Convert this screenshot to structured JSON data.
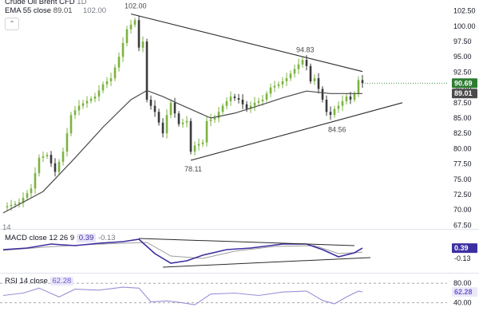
{
  "header": {
    "symbol_text": "Crude Oil Brent CFD",
    "interval": "1D",
    "ema_label": "EMA 55 close",
    "ema_value": "89.01",
    "ema_last_hover": "102.00",
    "macd_label": "MACD close 12 26 9",
    "macd_val1": "0.39",
    "macd_val2": "-0.13",
    "rsi_label": "RSI 14 close",
    "rsi_value": "62.28",
    "date_fragment": "14"
  },
  "colors": {
    "up": "#26a69a",
    "down": "#ef5350",
    "candle_up": "#7cb342",
    "ema": "#4a4a4a",
    "macd": "#3c2fa0",
    "signal": "#9e9e9e",
    "rsi": "#9b8fd6",
    "price_tag": "#2e7d32",
    "ema_tag": "#4a4a4a",
    "macd_tag": "#3c2fa0"
  },
  "chart_data": {
    "type": "candlestick",
    "price_axis": {
      "ticks": [
        102.5,
        100.0,
        97.5,
        95.0,
        92.5,
        90.0,
        87.5,
        85.0,
        82.5,
        80.0,
        77.5,
        75.0,
        72.5,
        70.0,
        67.5
      ],
      "tick_labels": [
        "102.50",
        "100.00",
        "97.50",
        "95.00",
        "92.50",
        "90.00",
        "87.50",
        "85.00",
        "82.50",
        "80.00",
        "77.50",
        "75.00",
        "72.50",
        "70.00",
        "67.50"
      ],
      "range": [
        66.5,
        103.5
      ]
    },
    "last_price": 90.69,
    "last_price_label": "90.69",
    "ema_last_label": "89.01",
    "annotations": [
      {
        "label": "102.00",
        "value": 102.0,
        "bar": 32
      },
      {
        "label": "94.83",
        "value": 94.83,
        "bar": 75
      },
      {
        "label": "84.56",
        "value": 84.56,
        "bar": 83
      },
      {
        "label": "78.11",
        "value": 78.11,
        "bar": 47
      }
    ],
    "close_path": [
      {
        "bar": 0,
        "close": 70.4
      },
      {
        "bar": 4,
        "close": 71.2
      },
      {
        "bar": 7,
        "close": 73.5
      },
      {
        "bar": 9,
        "close": 78.5
      },
      {
        "bar": 11,
        "close": 79.0
      },
      {
        "bar": 13,
        "close": 76.2
      },
      {
        "bar": 15,
        "close": 79.5
      },
      {
        "bar": 17,
        "close": 85.5
      },
      {
        "bar": 19,
        "close": 87.0
      },
      {
        "bar": 21,
        "close": 87.8
      },
      {
        "bar": 23,
        "close": 88.5
      },
      {
        "bar": 25,
        "close": 90.5
      },
      {
        "bar": 27,
        "close": 91.5
      },
      {
        "bar": 29,
        "close": 95.0
      },
      {
        "bar": 31,
        "close": 99.5
      },
      {
        "bar": 33,
        "close": 101.0
      },
      {
        "bar": 34,
        "close": 96.5
      },
      {
        "bar": 35,
        "close": 97.5
      },
      {
        "bar": 36,
        "close": 88.0
      },
      {
        "bar": 38,
        "close": 86.0
      },
      {
        "bar": 40,
        "close": 82.5
      },
      {
        "bar": 41,
        "close": 85.5
      },
      {
        "bar": 42,
        "close": 87.5
      },
      {
        "bar": 44,
        "close": 84.0
      },
      {
        "bar": 46,
        "close": 84.5
      },
      {
        "bar": 47,
        "close": 79.5
      },
      {
        "bar": 48,
        "close": 80.5
      },
      {
        "bar": 50,
        "close": 81.0
      },
      {
        "bar": 51,
        "close": 84.5
      },
      {
        "bar": 53,
        "close": 85.0
      },
      {
        "bar": 55,
        "close": 87.0
      },
      {
        "bar": 57,
        "close": 88.5
      },
      {
        "bar": 59,
        "close": 88.0
      },
      {
        "bar": 61,
        "close": 86.5
      },
      {
        "bar": 63,
        "close": 87.5
      },
      {
        "bar": 65,
        "close": 88.0
      },
      {
        "bar": 67,
        "close": 90.0
      },
      {
        "bar": 69,
        "close": 90.5
      },
      {
        "bar": 71,
        "close": 91.5
      },
      {
        "bar": 73,
        "close": 93.0
      },
      {
        "bar": 75,
        "close": 94.5
      },
      {
        "bar": 76,
        "close": 93.5
      },
      {
        "bar": 77,
        "close": 91.0
      },
      {
        "bar": 78,
        "close": 91.5
      },
      {
        "bar": 80,
        "close": 88.0
      },
      {
        "bar": 81,
        "close": 86.0
      },
      {
        "bar": 82,
        "close": 85.5
      },
      {
        "bar": 83,
        "close": 86.5
      },
      {
        "bar": 84,
        "close": 87.0
      },
      {
        "bar": 86,
        "close": 88.5
      },
      {
        "bar": 87,
        "close": 88.0
      },
      {
        "bar": 88,
        "close": 89.0
      },
      {
        "bar": 89,
        "close": 91.2
      },
      {
        "bar": 90,
        "close": 90.7
      }
    ],
    "ema55": [
      {
        "bar": 0,
        "value": 69.5
      },
      {
        "bar": 10,
        "value": 73.0
      },
      {
        "bar": 18,
        "value": 78.5
      },
      {
        "bar": 25,
        "value": 83.5
      },
      {
        "bar": 32,
        "value": 88.0
      },
      {
        "bar": 36,
        "value": 89.5
      },
      {
        "bar": 40,
        "value": 88.5
      },
      {
        "bar": 45,
        "value": 87.0
      },
      {
        "bar": 52,
        "value": 85.0
      },
      {
        "bar": 58,
        "value": 85.8
      },
      {
        "bar": 64,
        "value": 87.0
      },
      {
        "bar": 70,
        "value": 88.3
      },
      {
        "bar": 76,
        "value": 89.4
      },
      {
        "bar": 82,
        "value": 89.0
      },
      {
        "bar": 90,
        "value": 89.0
      }
    ],
    "trendlines": [
      {
        "name": "upper",
        "from": {
          "bar": 32,
          "value": 102.0
        },
        "to": {
          "bar": 90,
          "value": 92.6
        }
      },
      {
        "name": "lower",
        "from": {
          "bar": 47,
          "value": 78.1
        },
        "to": {
          "bar": 100,
          "value": 87.5
        }
      }
    ],
    "macd": {
      "range": [
        -2.5,
        2.5
      ],
      "macd_line": [
        {
          "bar": 0,
          "value": 0.2
        },
        {
          "bar": 6,
          "value": 0.4
        },
        {
          "bar": 12,
          "value": 0.9
        },
        {
          "bar": 18,
          "value": 0.7
        },
        {
          "bar": 24,
          "value": 1.0
        },
        {
          "bar": 30,
          "value": 1.2
        },
        {
          "bar": 34,
          "value": 1.5
        },
        {
          "bar": 38,
          "value": -0.3
        },
        {
          "bar": 42,
          "value": -1.5
        },
        {
          "bar": 46,
          "value": -1.2
        },
        {
          "bar": 50,
          "value": -0.5
        },
        {
          "bar": 56,
          "value": 0.2
        },
        {
          "bar": 62,
          "value": 0.4
        },
        {
          "bar": 70,
          "value": 0.9
        },
        {
          "bar": 76,
          "value": 0.9
        },
        {
          "bar": 80,
          "value": 0.2
        },
        {
          "bar": 84,
          "value": -0.7
        },
        {
          "bar": 88,
          "value": -0.2
        },
        {
          "bar": 90,
          "value": 0.39
        }
      ],
      "signal_line": [
        {
          "bar": 0,
          "value": 0.1
        },
        {
          "bar": 10,
          "value": 0.5
        },
        {
          "bar": 20,
          "value": 0.8
        },
        {
          "bar": 30,
          "value": 1.0
        },
        {
          "bar": 36,
          "value": 1.1
        },
        {
          "bar": 42,
          "value": -0.6
        },
        {
          "bar": 50,
          "value": -0.9
        },
        {
          "bar": 58,
          "value": 0.0
        },
        {
          "bar": 68,
          "value": 0.6
        },
        {
          "bar": 78,
          "value": 0.7
        },
        {
          "bar": 84,
          "value": -0.3
        },
        {
          "bar": 90,
          "value": -0.13
        }
      ],
      "trendlines": [
        {
          "from": {
            "bar": 34,
            "value": 1.6
          },
          "to": {
            "bar": 88,
            "value": 0.7
          }
        },
        {
          "from": {
            "bar": 40,
            "value": -2.0
          },
          "to": {
            "bar": 92,
            "value": -0.8
          }
        }
      ],
      "last_macd_label": "0.39",
      "last_signal_label": "-0.13"
    },
    "rsi": {
      "range": [
        20,
        95
      ],
      "levels": [
        {
          "value": 80,
          "label": "80.00"
        },
        {
          "value": 40,
          "label": "40.00"
        }
      ],
      "line": [
        {
          "bar": 0,
          "value": 55
        },
        {
          "bar": 5,
          "value": 60
        },
        {
          "bar": 9,
          "value": 70
        },
        {
          "bar": 14,
          "value": 52
        },
        {
          "bar": 18,
          "value": 68
        },
        {
          "bar": 24,
          "value": 66
        },
        {
          "bar": 30,
          "value": 72
        },
        {
          "bar": 34,
          "value": 70
        },
        {
          "bar": 37,
          "value": 42
        },
        {
          "bar": 41,
          "value": 44
        },
        {
          "bar": 45,
          "value": 40
        },
        {
          "bar": 48,
          "value": 36
        },
        {
          "bar": 52,
          "value": 58
        },
        {
          "bar": 58,
          "value": 60
        },
        {
          "bar": 64,
          "value": 55
        },
        {
          "bar": 70,
          "value": 62
        },
        {
          "bar": 76,
          "value": 64
        },
        {
          "bar": 80,
          "value": 45
        },
        {
          "bar": 83,
          "value": 38
        },
        {
          "bar": 86,
          "value": 52
        },
        {
          "bar": 89,
          "value": 64
        },
        {
          "bar": 90,
          "value": 62.28
        }
      ],
      "last_label": "62.28"
    }
  }
}
